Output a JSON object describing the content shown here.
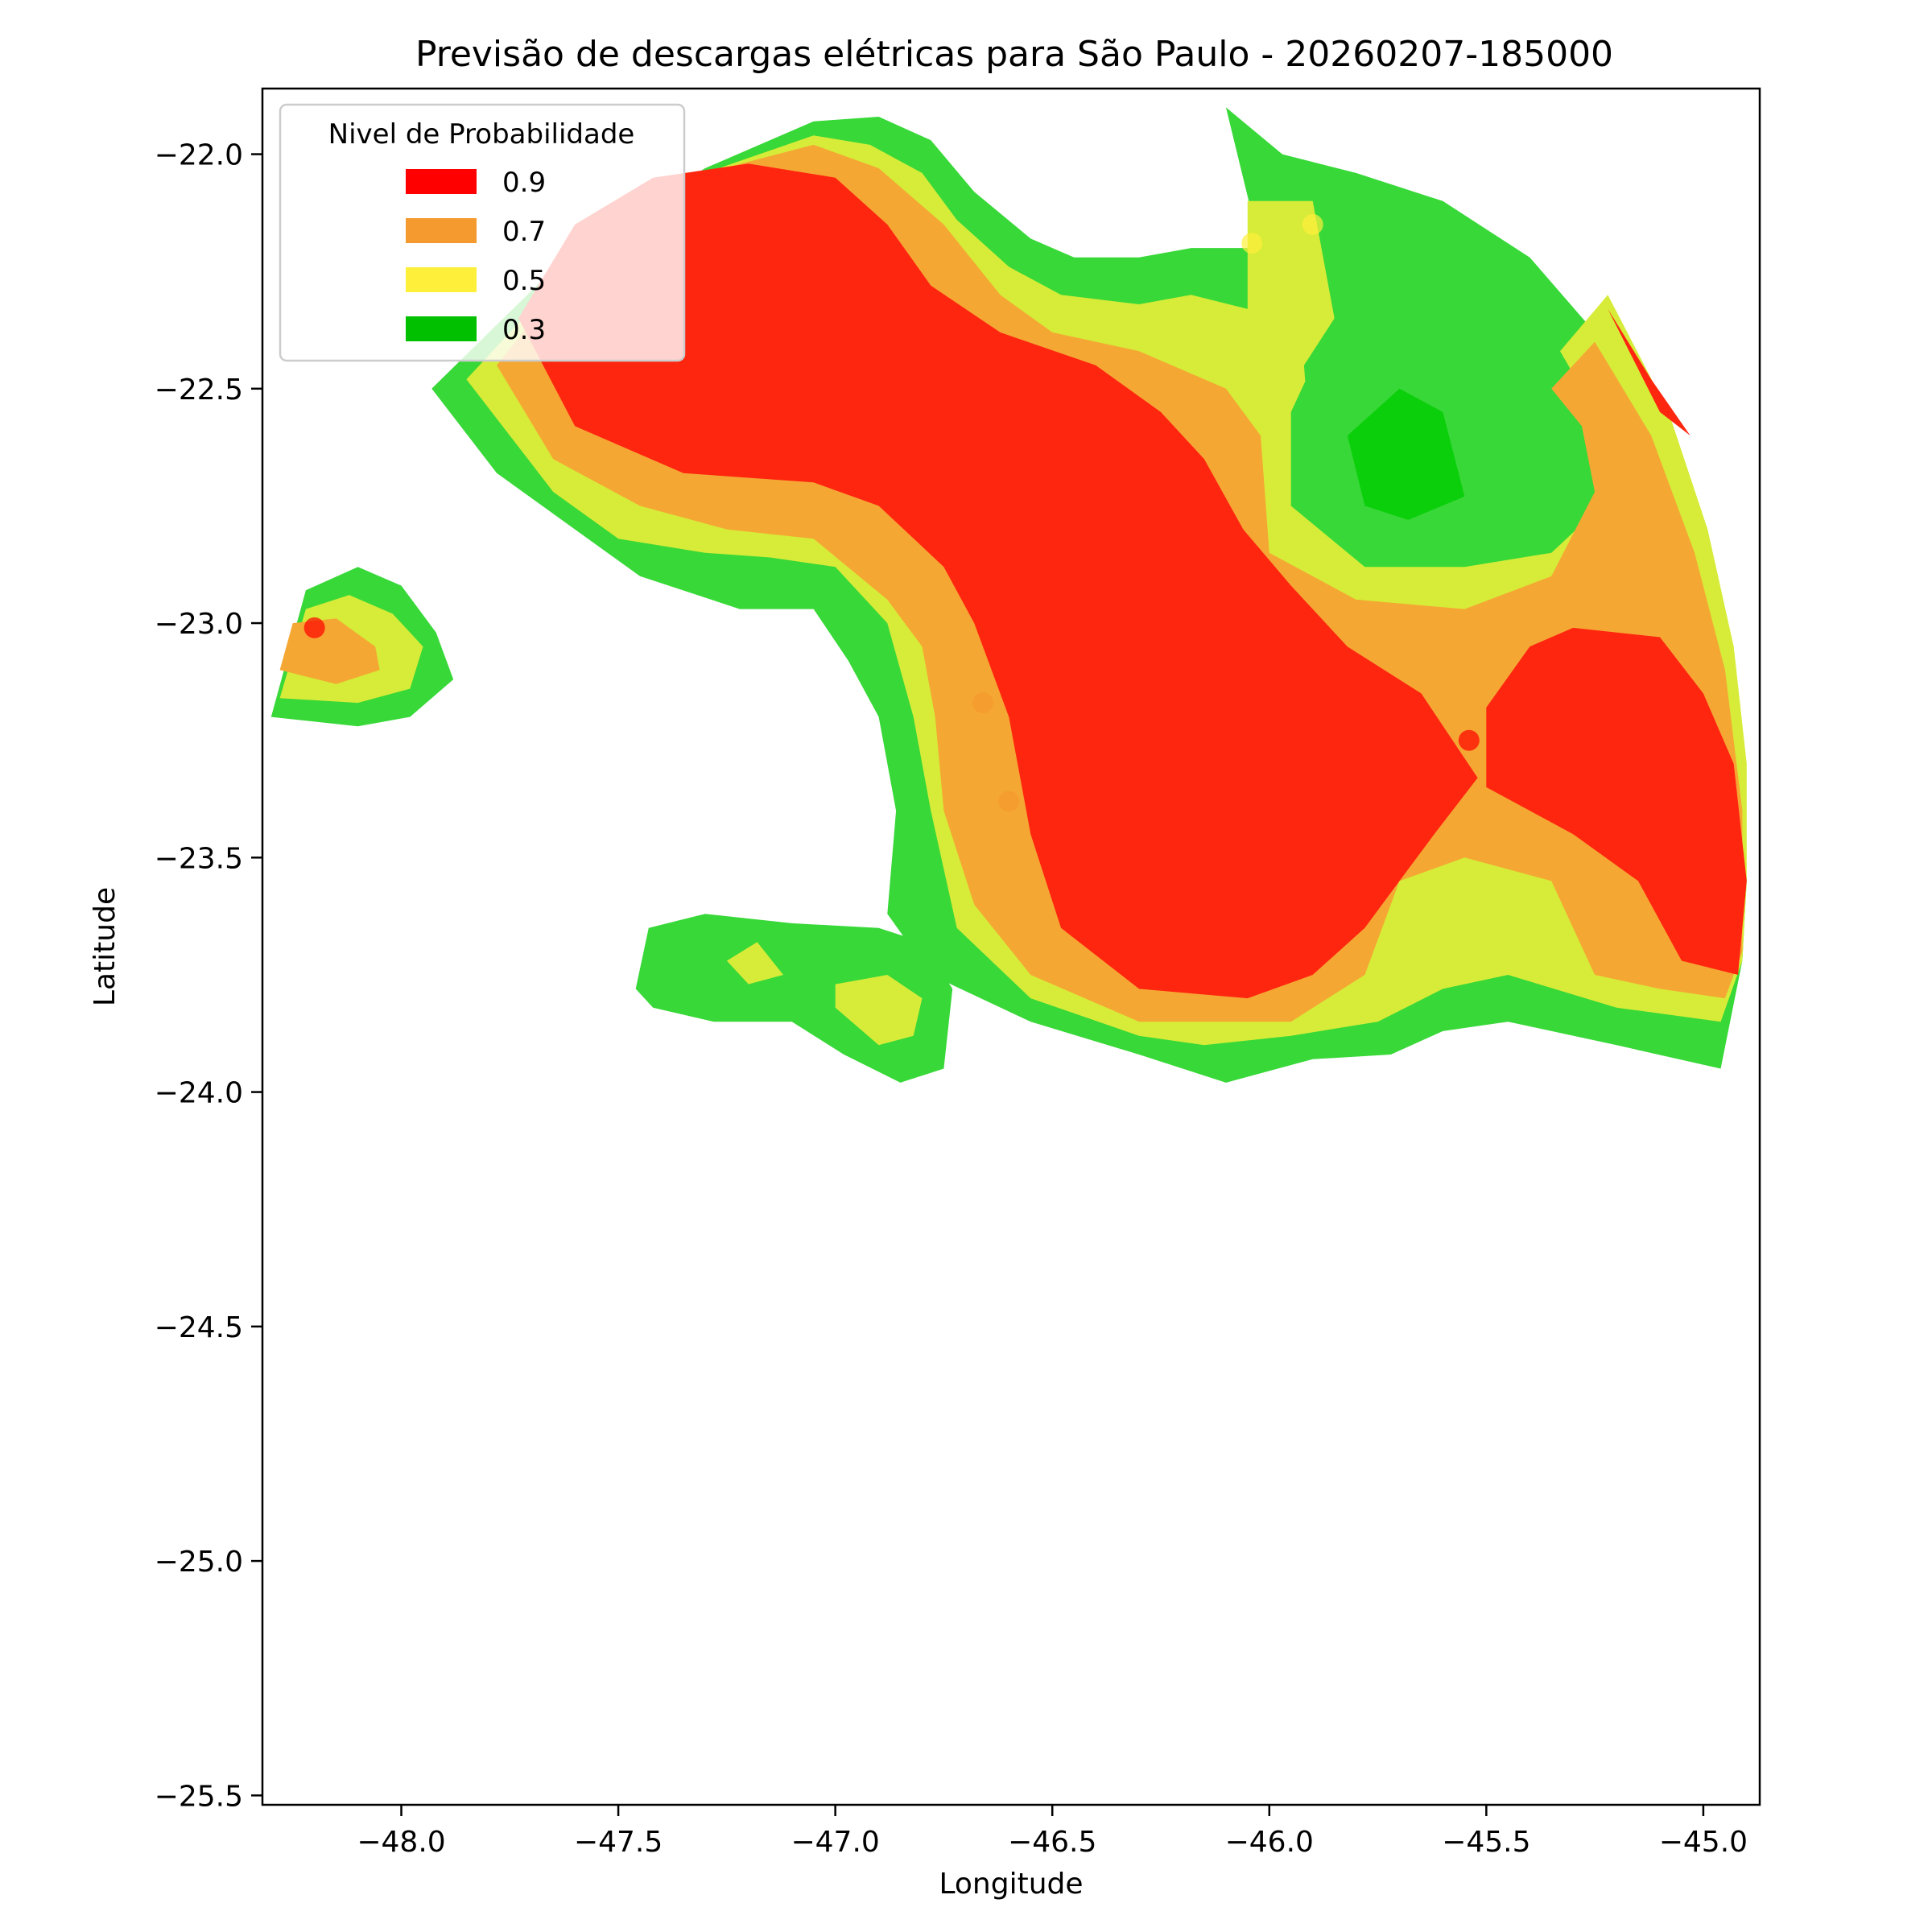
{
  "chart_data": {
    "type": "heatmap",
    "subtype": "filled-contour-map",
    "title": "Previsão de descargas elétricas para São Paulo - 20260207-185000",
    "xlabel": "Longitude",
    "ylabel": "Latitude",
    "xlim": [
      -48.32,
      -44.87
    ],
    "ylim": [
      -25.52,
      -21.86
    ],
    "x_ticks": [
      -48.0,
      -47.5,
      -47.0,
      -46.5,
      -46.0,
      -45.5,
      -45.0
    ],
    "x_tick_labels": [
      "−48.0",
      "−47.5",
      "−47.0",
      "−46.5",
      "−46.0",
      "−45.5",
      "−45.0"
    ],
    "y_ticks": [
      -22.0,
      -22.5,
      -23.0,
      -23.5,
      -24.0,
      -24.5,
      -25.0,
      -25.5
    ],
    "y_tick_labels": [
      "−22.0",
      "−22.5",
      "−23.0",
      "−23.5",
      "−24.0",
      "−24.5",
      "−25.0",
      "−25.5"
    ],
    "legend": {
      "title": "Nivel de Probabilidade",
      "position": "top-left",
      "entries": [
        {
          "label": "0.9",
          "color": "#ff0000"
        },
        {
          "label": "0.7",
          "color": "#f59a2e"
        },
        {
          "label": "0.5",
          "color": "#fdef3a"
        },
        {
          "label": "0.3",
          "color": "#00c000"
        }
      ]
    },
    "band_colors": {
      "0.9": "#ff2610",
      "0.7": "#f5a733",
      "0.5": "#d6ec38",
      "0.3": "#38d838",
      "0.3_core": "#0ccf0c"
    },
    "regions": [
      {
        "level": "0.3",
        "points": [
          [
            -47.93,
            -22.5
          ],
          [
            -47.6,
            -22.2
          ],
          [
            -47.3,
            -22.03
          ],
          [
            -47.05,
            -21.93
          ],
          [
            -46.9,
            -21.92
          ],
          [
            -46.78,
            -21.97
          ],
          [
            -46.68,
            -22.08
          ],
          [
            -46.55,
            -22.18
          ],
          [
            -46.45,
            -22.22
          ],
          [
            -46.3,
            -22.22
          ],
          [
            -46.18,
            -22.2
          ],
          [
            -46.05,
            -22.2
          ],
          [
            -46.0,
            -22.28
          ],
          [
            -46.1,
            -21.9
          ],
          [
            -45.97,
            -22.0
          ],
          [
            -45.8,
            -22.04
          ],
          [
            -45.6,
            -22.1
          ],
          [
            -45.4,
            -22.22
          ],
          [
            -45.25,
            -22.38
          ],
          [
            -45.12,
            -22.58
          ],
          [
            -45.02,
            -22.82
          ],
          [
            -44.95,
            -23.05
          ],
          [
            -44.91,
            -23.3
          ],
          [
            -44.9,
            -23.55
          ],
          [
            -44.91,
            -23.72
          ],
          [
            -44.96,
            -23.95
          ],
          [
            -45.2,
            -23.9
          ],
          [
            -45.45,
            -23.85
          ],
          [
            -45.6,
            -23.87
          ],
          [
            -45.72,
            -23.92
          ],
          [
            -45.9,
            -23.93
          ],
          [
            -46.1,
            -23.98
          ],
          [
            -46.3,
            -23.92
          ],
          [
            -46.55,
            -23.85
          ],
          [
            -46.78,
            -23.75
          ],
          [
            -46.88,
            -23.62
          ],
          [
            -46.86,
            -23.4
          ],
          [
            -46.9,
            -23.2
          ],
          [
            -46.97,
            -23.08
          ],
          [
            -47.05,
            -22.97
          ],
          [
            -47.22,
            -22.97
          ],
          [
            -47.45,
            -22.9
          ],
          [
            -47.6,
            -22.8
          ],
          [
            -47.78,
            -22.68
          ],
          [
            -47.93,
            -22.5
          ]
        ]
      },
      {
        "level": "0.5",
        "points": [
          [
            -47.85,
            -22.48
          ],
          [
            -47.55,
            -22.18
          ],
          [
            -47.3,
            -22.04
          ],
          [
            -47.05,
            -21.96
          ],
          [
            -46.92,
            -21.98
          ],
          [
            -46.8,
            -22.04
          ],
          [
            -46.72,
            -22.14
          ],
          [
            -46.6,
            -22.24
          ],
          [
            -46.48,
            -22.3
          ],
          [
            -46.3,
            -22.32
          ],
          [
            -46.18,
            -22.3
          ],
          [
            -46.05,
            -22.33
          ],
          [
            -46.05,
            -22.1
          ],
          [
            -45.9,
            -22.1
          ],
          [
            -45.85,
            -22.35
          ],
          [
            -45.95,
            -22.55
          ],
          [
            -45.95,
            -22.75
          ],
          [
            -45.78,
            -22.88
          ],
          [
            -45.55,
            -22.88
          ],
          [
            -45.35,
            -22.85
          ],
          [
            -45.2,
            -22.72
          ],
          [
            -45.28,
            -22.5
          ],
          [
            -45.33,
            -22.42
          ],
          [
            -45.22,
            -22.3
          ],
          [
            -45.08,
            -22.55
          ],
          [
            -44.99,
            -22.8
          ],
          [
            -44.93,
            -23.05
          ],
          [
            -44.9,
            -23.3
          ],
          [
            -44.9,
            -23.55
          ],
          [
            -44.91,
            -23.72
          ],
          [
            -44.96,
            -23.85
          ],
          [
            -45.2,
            -23.82
          ],
          [
            -45.45,
            -23.75
          ],
          [
            -45.6,
            -23.78
          ],
          [
            -45.75,
            -23.85
          ],
          [
            -45.95,
            -23.88
          ],
          [
            -46.15,
            -23.9
          ],
          [
            -46.3,
            -23.88
          ],
          [
            -46.55,
            -23.8
          ],
          [
            -46.72,
            -23.65
          ],
          [
            -46.78,
            -23.4
          ],
          [
            -46.82,
            -23.2
          ],
          [
            -46.88,
            -23.0
          ],
          [
            -47.0,
            -22.88
          ],
          [
            -47.15,
            -22.86
          ],
          [
            -47.3,
            -22.85
          ],
          [
            -47.5,
            -22.82
          ],
          [
            -47.65,
            -22.72
          ],
          [
            -47.85,
            -22.48
          ]
        ]
      },
      {
        "level": "0.7",
        "points": [
          [
            -47.78,
            -22.45
          ],
          [
            -47.55,
            -22.18
          ],
          [
            -47.3,
            -22.04
          ],
          [
            -47.05,
            -21.98
          ],
          [
            -46.9,
            -22.03
          ],
          [
            -46.75,
            -22.15
          ],
          [
            -46.62,
            -22.3
          ],
          [
            -46.5,
            -22.38
          ],
          [
            -46.3,
            -22.42
          ],
          [
            -46.1,
            -22.5
          ],
          [
            -46.02,
            -22.6
          ],
          [
            -46.0,
            -22.85
          ],
          [
            -45.8,
            -22.95
          ],
          [
            -45.55,
            -22.97
          ],
          [
            -45.35,
            -22.9
          ],
          [
            -45.25,
            -22.72
          ],
          [
            -45.28,
            -22.58
          ],
          [
            -45.35,
            -22.5
          ],
          [
            -45.25,
            -22.4
          ],
          [
            -45.12,
            -22.6
          ],
          [
            -45.02,
            -22.85
          ],
          [
            -44.95,
            -23.1
          ],
          [
            -44.91,
            -23.4
          ],
          [
            -44.91,
            -23.7
          ],
          [
            -44.95,
            -23.8
          ],
          [
            -45.1,
            -23.78
          ],
          [
            -45.25,
            -23.75
          ],
          [
            -45.35,
            -23.55
          ],
          [
            -45.55,
            -23.5
          ],
          [
            -45.7,
            -23.55
          ],
          [
            -45.78,
            -23.75
          ],
          [
            -45.95,
            -23.85
          ],
          [
            -46.15,
            -23.85
          ],
          [
            -46.3,
            -23.85
          ],
          [
            -46.55,
            -23.75
          ],
          [
            -46.68,
            -23.6
          ],
          [
            -46.75,
            -23.4
          ],
          [
            -46.77,
            -23.2
          ],
          [
            -46.8,
            -23.05
          ],
          [
            -46.88,
            -22.95
          ],
          [
            -47.05,
            -22.82
          ],
          [
            -47.25,
            -22.8
          ],
          [
            -47.45,
            -22.75
          ],
          [
            -47.65,
            -22.65
          ],
          [
            -47.78,
            -22.45
          ]
        ]
      },
      {
        "level": "0.9",
        "points": [
          [
            -47.73,
            -22.35
          ],
          [
            -47.6,
            -22.15
          ],
          [
            -47.42,
            -22.05
          ],
          [
            -47.2,
            -22.02
          ],
          [
            -47.0,
            -22.05
          ],
          [
            -46.88,
            -22.15
          ],
          [
            -46.78,
            -22.28
          ],
          [
            -46.62,
            -22.38
          ],
          [
            -46.4,
            -22.45
          ],
          [
            -46.25,
            -22.55
          ],
          [
            -46.15,
            -22.65
          ],
          [
            -46.06,
            -22.8
          ],
          [
            -45.95,
            -22.92
          ],
          [
            -45.82,
            -23.05
          ],
          [
            -45.65,
            -23.15
          ],
          [
            -45.52,
            -23.33
          ],
          [
            -45.62,
            -23.45
          ],
          [
            -45.7,
            -23.55
          ],
          [
            -45.78,
            -23.65
          ],
          [
            -45.9,
            -23.75
          ],
          [
            -46.05,
            -23.8
          ],
          [
            -46.3,
            -23.78
          ],
          [
            -46.48,
            -23.65
          ],
          [
            -46.55,
            -23.45
          ],
          [
            -46.6,
            -23.2
          ],
          [
            -46.68,
            -23.0
          ],
          [
            -46.75,
            -22.88
          ],
          [
            -46.9,
            -22.75
          ],
          [
            -47.05,
            -22.7
          ],
          [
            -47.35,
            -22.68
          ],
          [
            -47.6,
            -22.58
          ],
          [
            -47.73,
            -22.35
          ]
        ]
      },
      {
        "level": "0.9",
        "points": [
          [
            -45.5,
            -23.18
          ],
          [
            -45.4,
            -23.05
          ],
          [
            -45.3,
            -23.01
          ],
          [
            -45.1,
            -23.03
          ],
          [
            -45.0,
            -23.15
          ],
          [
            -44.93,
            -23.3
          ],
          [
            -44.9,
            -23.55
          ],
          [
            -44.92,
            -23.75
          ],
          [
            -45.05,
            -23.72
          ],
          [
            -45.15,
            -23.55
          ],
          [
            -45.3,
            -23.45
          ],
          [
            -45.5,
            -23.35
          ],
          [
            -45.5,
            -23.18
          ]
        ]
      },
      {
        "level": "0.9",
        "points": [
          [
            -45.22,
            -22.33
          ],
          [
            -45.12,
            -22.48
          ],
          [
            -45.03,
            -22.6
          ],
          [
            -45.1,
            -22.55
          ],
          [
            -45.22,
            -22.33
          ]
        ]
      },
      {
        "level": "0.3",
        "points": [
          [
            -48.3,
            -23.2
          ],
          [
            -48.22,
            -22.93
          ],
          [
            -48.1,
            -22.88
          ],
          [
            -48.0,
            -22.92
          ],
          [
            -47.92,
            -23.02
          ],
          [
            -47.88,
            -23.12
          ],
          [
            -47.98,
            -23.2
          ],
          [
            -48.1,
            -23.22
          ],
          [
            -48.3,
            -23.2
          ]
        ]
      },
      {
        "level": "0.5",
        "points": [
          [
            -48.28,
            -23.16
          ],
          [
            -48.22,
            -22.97
          ],
          [
            -48.12,
            -22.94
          ],
          [
            -48.02,
            -22.98
          ],
          [
            -47.95,
            -23.05
          ],
          [
            -47.98,
            -23.14
          ],
          [
            -48.1,
            -23.17
          ],
          [
            -48.28,
            -23.16
          ]
        ]
      },
      {
        "level": "0.7",
        "points": [
          [
            -48.28,
            -23.1
          ],
          [
            -48.25,
            -23.0
          ],
          [
            -48.15,
            -22.99
          ],
          [
            -48.06,
            -23.05
          ],
          [
            -48.05,
            -23.1
          ],
          [
            -48.15,
            -23.13
          ],
          [
            -48.28,
            -23.1
          ]
        ]
      },
      {
        "level": "0.3",
        "points": [
          [
            -47.46,
            -23.78
          ],
          [
            -47.43,
            -23.65
          ],
          [
            -47.3,
            -23.62
          ],
          [
            -47.1,
            -23.64
          ],
          [
            -46.9,
            -23.65
          ],
          [
            -46.8,
            -23.68
          ],
          [
            -46.73,
            -23.78
          ],
          [
            -46.75,
            -23.95
          ],
          [
            -46.85,
            -23.98
          ],
          [
            -46.98,
            -23.92
          ],
          [
            -47.1,
            -23.85
          ],
          [
            -47.28,
            -23.85
          ],
          [
            -47.42,
            -23.82
          ],
          [
            -47.46,
            -23.78
          ]
        ]
      },
      {
        "level": "0.5",
        "points": [
          [
            -47.25,
            -23.72
          ],
          [
            -47.18,
            -23.68
          ],
          [
            -47.12,
            -23.75
          ],
          [
            -47.2,
            -23.77
          ],
          [
            -47.25,
            -23.72
          ]
        ]
      },
      {
        "level": "0.5",
        "points": [
          [
            -47.0,
            -23.77
          ],
          [
            -46.88,
            -23.75
          ],
          [
            -46.8,
            -23.8
          ],
          [
            -46.82,
            -23.88
          ],
          [
            -46.9,
            -23.9
          ],
          [
            -47.0,
            -23.82
          ],
          [
            -47.0,
            -23.77
          ]
        ]
      },
      {
        "level": "0.3",
        "points": [
          [
            -45.92,
            -22.45
          ],
          [
            -45.9,
            -22.7
          ],
          [
            -45.75,
            -22.82
          ],
          [
            -45.55,
            -22.85
          ],
          [
            -45.38,
            -22.8
          ],
          [
            -45.42,
            -22.68
          ],
          [
            -45.52,
            -22.5
          ],
          [
            -45.65,
            -22.3
          ],
          [
            -45.85,
            -22.35
          ],
          [
            -45.92,
            -22.45
          ]
        ]
      },
      {
        "level": "0.3_core",
        "points": [
          [
            -45.82,
            -22.6
          ],
          [
            -45.78,
            -22.75
          ],
          [
            -45.68,
            -22.78
          ],
          [
            -45.55,
            -22.73
          ],
          [
            -45.6,
            -22.55
          ],
          [
            -45.7,
            -22.5
          ],
          [
            -45.82,
            -22.6
          ]
        ]
      }
    ],
    "markers": [
      {
        "lon": -48.2,
        "lat": -23.01,
        "level": "0.9"
      },
      {
        "lon": -46.66,
        "lat": -23.17,
        "level": "0.7"
      },
      {
        "lon": -46.6,
        "lat": -23.38,
        "level": "0.7"
      },
      {
        "lon": -46.04,
        "lat": -22.19,
        "level": "0.5"
      },
      {
        "lon": -45.9,
        "lat": -22.15,
        "level": "0.5"
      },
      {
        "lon": -45.54,
        "lat": -23.25,
        "level": "0.9"
      }
    ]
  }
}
